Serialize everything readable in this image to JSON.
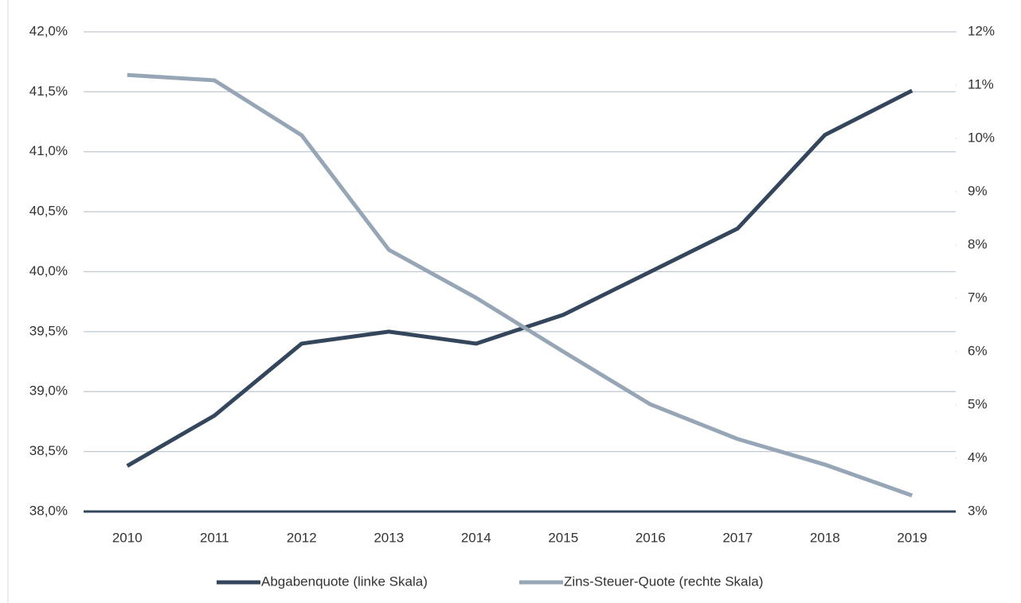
{
  "chart_data": {
    "type": "line",
    "categories": [
      "2010",
      "2011",
      "2012",
      "2013",
      "2014",
      "2015",
      "2016",
      "2017",
      "2018",
      "2019"
    ],
    "series": [
      {
        "name": "Abgabenquote (linke Skala)",
        "color": "#34465c",
        "axis": "y",
        "values": [
          38.38,
          38.8,
          39.4,
          39.5,
          39.4,
          39.64,
          40.0,
          40.36,
          41.14,
          41.51
        ]
      },
      {
        "name": "Zins-Steuer-Quote (rechte Skala)",
        "color": "#97a6b6",
        "axis": "y2",
        "values": [
          11.19,
          11.09,
          10.06,
          7.91,
          7.01,
          6.0,
          5.01,
          4.36,
          3.88,
          3.3
        ]
      }
    ],
    "ylim": [
      38,
      42
    ],
    "yticks": [
      {
        "value": 38,
        "label": "38,0%"
      },
      {
        "value": 38.5,
        "label": "38,5%"
      },
      {
        "value": 39,
        "label": "39,0%"
      },
      {
        "value": 39.5,
        "label": "39,5%"
      },
      {
        "value": 40,
        "label": "40,0%"
      },
      {
        "value": 40.5,
        "label": "40,5%"
      },
      {
        "value": 41,
        "label": "41,0%"
      },
      {
        "value": 41.5,
        "label": "41,5%"
      },
      {
        "value": 42,
        "label": "42,0%"
      }
    ],
    "y2lim": [
      3,
      12
    ],
    "y2ticks": [
      {
        "value": 3,
        "label": "3%"
      },
      {
        "value": 4,
        "label": "4%"
      },
      {
        "value": 5,
        "label": "5%"
      },
      {
        "value": 6,
        "label": "6%"
      },
      {
        "value": 7,
        "label": "7%"
      },
      {
        "value": 8,
        "label": "8%"
      },
      {
        "value": 9,
        "label": "9%"
      },
      {
        "value": 10,
        "label": "10%"
      },
      {
        "value": 11,
        "label": "11%"
      },
      {
        "value": 12,
        "label": "12%"
      }
    ],
    "grid": true,
    "legend": "bottom"
  }
}
